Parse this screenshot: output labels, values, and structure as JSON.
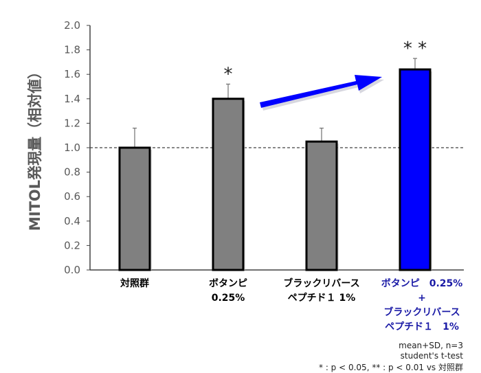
{
  "chart_data": {
    "type": "bar",
    "title": "",
    "xlabel": "",
    "ylabel": "MITOL発現量（相対値）",
    "ylim": [
      0.0,
      2.0
    ],
    "yticks": [
      "0.0",
      "0.2",
      "0.4",
      "0.6",
      "0.8",
      "1.0",
      "1.2",
      "1.4",
      "1.6",
      "1.8",
      "2.0"
    ],
    "reference_line": {
      "y": 1.0,
      "style": "dashed"
    },
    "categories": [
      {
        "lines": [
          "対照群"
        ],
        "color": "#000000"
      },
      {
        "lines": [
          "ボタンピ",
          "0.25%"
        ],
        "color": "#000000"
      },
      {
        "lines": [
          "ブラックリバース",
          "ペプチド１ 1%"
        ],
        "color": "#000000"
      },
      {
        "lines": [
          "ボタンピ　0.25%",
          "+",
          "ブラックリバース",
          "ペプチド１　1%"
        ],
        "color": "#1a1aa6"
      }
    ],
    "values": [
      1.0,
      1.4,
      1.05,
      1.64
    ],
    "errors": [
      0.16,
      0.12,
      0.11,
      0.09
    ],
    "bar_colors": [
      "#808080",
      "#808080",
      "#808080",
      "#0000ff"
    ],
    "significance": [
      "",
      "*",
      "",
      "**"
    ],
    "annotations": [
      {
        "type": "arrow",
        "color": "#0000ff",
        "from": "bar2",
        "to": "bar4"
      }
    ],
    "grid": false,
    "legend": null
  },
  "notes": {
    "line1": "mean+SD, n=3",
    "line2": "student's t-test",
    "line3": "* : p < 0.05,  ** : p < 0.01 vs 対照群"
  }
}
